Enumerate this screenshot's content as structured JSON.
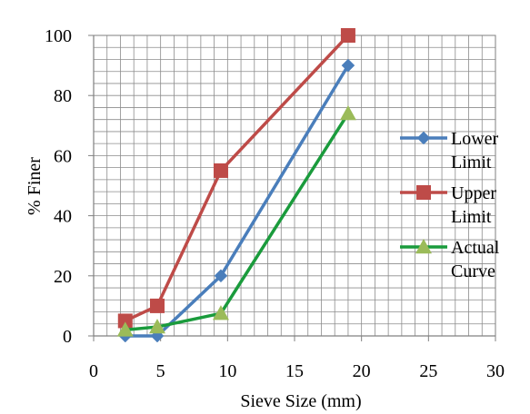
{
  "chart_data": {
    "type": "line",
    "title": "",
    "xlabel": "Sieve Size (mm)",
    "ylabel": "% Finer",
    "xlim": [
      0,
      30
    ],
    "ylim": [
      0,
      100
    ],
    "x_ticks": [
      0,
      5,
      10,
      15,
      20,
      25,
      30
    ],
    "y_ticks": [
      0,
      20,
      40,
      60,
      80,
      100
    ],
    "x_minor_step": 1,
    "y_minor_step": 4,
    "grid": true,
    "legend_position": "right",
    "series": [
      {
        "name": "Lower Limit",
        "label_lines": [
          "Lower",
          "Limit"
        ],
        "color": "#4a7ebb",
        "marker": "diamond",
        "points": [
          [
            2.36,
            0
          ],
          [
            4.75,
            0
          ],
          [
            9.5,
            20
          ],
          [
            19,
            90
          ]
        ]
      },
      {
        "name": "Upper Limit",
        "label_lines": [
          "Upper",
          "Limit"
        ],
        "color": "#be4b48",
        "marker": "square",
        "points": [
          [
            2.36,
            5
          ],
          [
            4.75,
            10
          ],
          [
            9.5,
            55
          ],
          [
            19,
            100
          ]
        ]
      },
      {
        "name": "Actual Curve",
        "label_lines": [
          "Actual",
          "Curve"
        ],
        "color": "#1a9b3c",
        "marker_color": "#9bbb59",
        "marker": "triangle",
        "points": [
          [
            2.36,
            2
          ],
          [
            4.75,
            3
          ],
          [
            9.5,
            7.5
          ],
          [
            19,
            74
          ]
        ]
      }
    ]
  }
}
